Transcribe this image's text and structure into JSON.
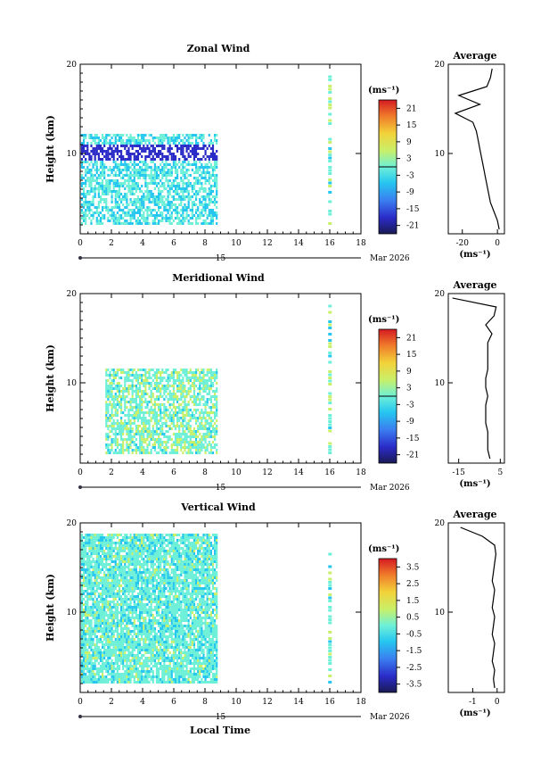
{
  "figure": {
    "bottom_xlabel": "Local Time",
    "day_label": "15",
    "month_label": "Mar 2026"
  },
  "chart_data": [
    {
      "type": "heatmap",
      "title": "Zonal Wind",
      "xlabel": "",
      "ylabel": "Height (km)",
      "xlim": [
        0,
        18
      ],
      "ylim": [
        1,
        20
      ],
      "xticks": [
        0,
        2,
        4,
        6,
        8,
        10,
        12,
        14,
        16,
        18
      ],
      "yticks": [
        10,
        20
      ],
      "colorbar": {
        "unit_label": "(ms⁻¹)",
        "range": [
          -24,
          24
        ],
        "ticks": [
          21,
          15,
          9,
          3,
          -3,
          -9,
          -15,
          -21
        ]
      },
      "average_profile": {
        "title": "Average",
        "xlabel": "(ms⁻¹)",
        "xlim": [
          -28,
          4
        ],
        "xticks": [
          -20,
          0
        ],
        "yticks": [
          10,
          20
        ],
        "heights": [
          1.5,
          2.5,
          3.5,
          4.5,
          5.5,
          6.5,
          7.5,
          8.5,
          9.5,
          10.5,
          11.5,
          12.5,
          13.5,
          14.5,
          15.5,
          16.5,
          17.5,
          18.5,
          19.5
        ],
        "values": [
          1,
          0,
          -2,
          -4,
          -5,
          -6,
          -7,
          -8,
          -9,
          -10,
          -11,
          -12,
          -14,
          -24,
          -10,
          -22,
          -6,
          -4,
          -3
        ]
      }
    },
    {
      "type": "heatmap",
      "title": "Meridional Wind",
      "xlabel": "",
      "ylabel": "Height (km)",
      "xlim": [
        0,
        18
      ],
      "ylim": [
        1,
        20
      ],
      "xticks": [
        0,
        2,
        4,
        6,
        8,
        10,
        12,
        14,
        16,
        18
      ],
      "yticks": [
        10,
        20
      ],
      "colorbar": {
        "unit_label": "(ms⁻¹)",
        "range": [
          -24,
          24
        ],
        "ticks": [
          21,
          15,
          9,
          3,
          -3,
          -9,
          -15,
          -21
        ]
      },
      "average_profile": {
        "title": "Average",
        "xlabel": "(ms⁻¹)",
        "xlim": [
          -20,
          7
        ],
        "xticks": [
          -15,
          5
        ],
        "yticks": [
          10,
          20
        ],
        "heights": [
          1.5,
          2.5,
          3.5,
          4.5,
          5.5,
          6.5,
          7.5,
          8.5,
          9.5,
          10.5,
          11.5,
          12.5,
          13.5,
          14.5,
          15.5,
          16.5,
          17.5,
          18.5,
          19.5
        ],
        "values": [
          0,
          -1,
          -1,
          -1,
          -2,
          -2,
          -2,
          -1,
          -2,
          -2,
          -1,
          -1,
          -1,
          -1,
          1,
          -2,
          2,
          3,
          -18
        ]
      }
    },
    {
      "type": "heatmap",
      "title": "Vertical Wind",
      "xlabel": "Local Time",
      "ylabel": "Height (km)",
      "xlim": [
        0,
        18
      ],
      "ylim": [
        1,
        20
      ],
      "xticks": [
        0,
        2,
        4,
        6,
        8,
        10,
        12,
        14,
        16,
        18
      ],
      "yticks": [
        10,
        20
      ],
      "colorbar": {
        "unit_label": "(ms⁻¹)",
        "range": [
          -4,
          4
        ],
        "ticks": [
          3.5,
          2.5,
          1.5,
          0.5,
          -0.5,
          -1.5,
          -2.5,
          -3.5
        ]
      },
      "average_profile": {
        "title": "Average",
        "xlabel": "(ms⁻¹)",
        "xlim": [
          -2,
          0.3
        ],
        "xticks": [
          -1,
          0
        ],
        "yticks": [
          10,
          20
        ],
        "heights": [
          1.5,
          2.5,
          3.5,
          4.5,
          5.5,
          6.5,
          7.5,
          8.5,
          9.5,
          10.5,
          11.5,
          12.5,
          13.5,
          14.5,
          15.5,
          16.5,
          17.5,
          18.5,
          19.5
        ],
        "values": [
          -0.1,
          -0.15,
          -0.1,
          -0.2,
          -0.15,
          -0.1,
          -0.2,
          -0.15,
          -0.1,
          -0.2,
          -0.15,
          -0.1,
          -0.2,
          -0.15,
          -0.1,
          -0.05,
          -0.1,
          -0.6,
          -1.5
        ]
      }
    }
  ]
}
